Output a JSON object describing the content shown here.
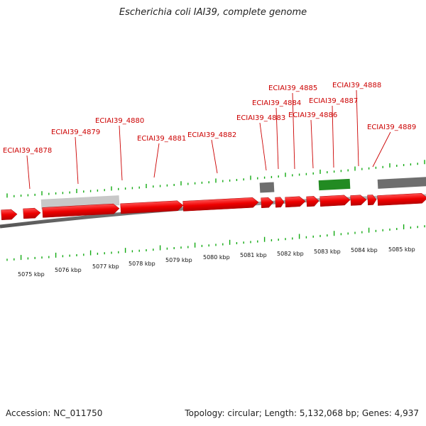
{
  "title": "Escherichia coli IAI39, complete genome",
  "accession": "Accession: NC_011750",
  "topology": "Topology: circular; Length: 5,132,068 bp; Genes: 4,937",
  "colors": {
    "cds": "#ee0000",
    "backbone": "#888888",
    "tick": "#11aa11",
    "label": "#cc0000",
    "misc_feature_light": "#c8c8c8",
    "misc_feature_dark": "#6e6e6e",
    "green_feature": "#228b22"
  },
  "gene_labels": [
    {
      "id": "l4878",
      "text": "ECIAI39_4878"
    },
    {
      "id": "l4879",
      "text": "ECIAI39_4879"
    },
    {
      "id": "l4880",
      "text": "ECIAI39_4880"
    },
    {
      "id": "l4881",
      "text": "ECIAI39_4881"
    },
    {
      "id": "l4882",
      "text": "ECIAI39_4882"
    },
    {
      "id": "l4883",
      "text": "ECIAI39_4883"
    },
    {
      "id": "l4884",
      "text": "ECIAI39_4884"
    },
    {
      "id": "l4885",
      "text": "ECIAI39_4885"
    },
    {
      "id": "l4886",
      "text": "ECIAI39_4886"
    },
    {
      "id": "l4887",
      "text": "ECIAI39_4887"
    },
    {
      "id": "l4888",
      "text": "ECIAI39_4888"
    },
    {
      "id": "l4889",
      "text": "ECIAI39_4889"
    }
  ],
  "kbp_labels": [
    "5075 kbp",
    "5076 kbp",
    "5077 kbp",
    "5078 kbp",
    "5079 kbp",
    "5080 kbp",
    "5081 kbp",
    "5082 kbp",
    "5083 kbp",
    "5084 kbp",
    "5085 kbp"
  ]
}
